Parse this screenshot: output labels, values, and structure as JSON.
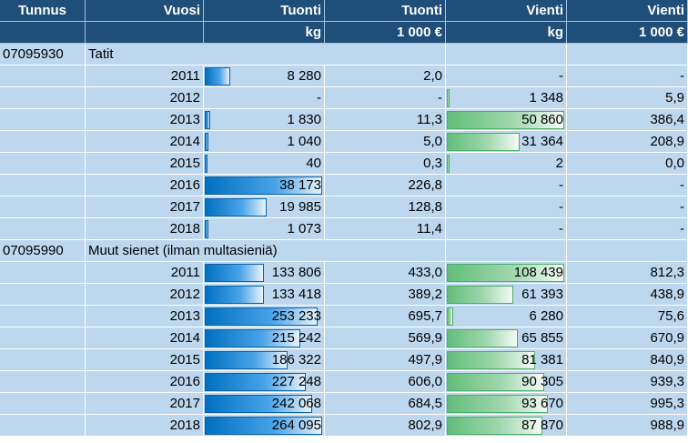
{
  "header": {
    "row1": [
      "Tunnus",
      "Vuosi",
      "Tuonti",
      "Tuonti",
      "Vienti",
      "Vienti"
    ],
    "row2": [
      "",
      "",
      "kg",
      "1 000 €",
      "kg",
      "1 000 €"
    ]
  },
  "colors": {
    "header_bg": "#1f4e79",
    "body_bg": "#bdd7ee",
    "import_bar": "#0070c0",
    "export_bar": "#63be7b"
  },
  "groups": [
    {
      "code": "07095930",
      "name": "Tatit",
      "rows": [
        {
          "year": "2011",
          "import_kg": "8 280",
          "import_k": "2,0",
          "export_kg": "-",
          "export_k": "-",
          "import_bar": 8280,
          "export_bar": 0
        },
        {
          "year": "2012",
          "import_kg": "-",
          "import_k": "-",
          "export_kg": "1 348",
          "export_k": "5,9",
          "import_bar": 0,
          "export_bar": 1348
        },
        {
          "year": "2013",
          "import_kg": "1 830",
          "import_k": "11,3",
          "export_kg": "50 860",
          "export_k": "386,4",
          "import_bar": 1830,
          "export_bar": 50860
        },
        {
          "year": "2014",
          "import_kg": "1 040",
          "import_k": "5,0",
          "export_kg": "31 364",
          "export_k": "208,9",
          "import_bar": 1040,
          "export_bar": 31364
        },
        {
          "year": "2015",
          "import_kg": "40",
          "import_k": "0,3",
          "export_kg": "2",
          "export_k": "0,0",
          "import_bar": 40,
          "export_bar": 2
        },
        {
          "year": "2016",
          "import_kg": "38 173",
          "import_k": "226,8",
          "export_kg": "-",
          "export_k": "-",
          "import_bar": 38173,
          "export_bar": 0
        },
        {
          "year": "2017",
          "import_kg": "19 985",
          "import_k": "128,8",
          "export_kg": "-",
          "export_k": "-",
          "import_bar": 19985,
          "export_bar": 0
        },
        {
          "year": "2018",
          "import_kg": "1 073",
          "import_k": "11,4",
          "export_kg": "-",
          "export_k": "-",
          "import_bar": 1073,
          "export_bar": 0
        }
      ]
    },
    {
      "code": "07095990",
      "name": "Muut sienet (ilman multasieniä)",
      "rows": [
        {
          "year": "2011",
          "import_kg": "133 806",
          "import_k": "433,0",
          "export_kg": "108 439",
          "export_k": "812,3",
          "import_bar": 133806,
          "export_bar": 108439
        },
        {
          "year": "2012",
          "import_kg": "133 418",
          "import_k": "389,2",
          "export_kg": "61 393",
          "export_k": "438,9",
          "import_bar": 133418,
          "export_bar": 61393
        },
        {
          "year": "2013",
          "import_kg": "253 233",
          "import_k": "695,7",
          "export_kg": "6 280",
          "export_k": "75,6",
          "import_bar": 253233,
          "export_bar": 6280
        },
        {
          "year": "2014",
          "import_kg": "215 242",
          "import_k": "569,9",
          "export_kg": "65 855",
          "export_k": "670,9",
          "import_bar": 215242,
          "export_bar": 65855
        },
        {
          "year": "2015",
          "import_kg": "186 322",
          "import_k": "497,9",
          "export_kg": "81 381",
          "export_k": "840,9",
          "import_bar": 186322,
          "export_bar": 81381
        },
        {
          "year": "2016",
          "import_kg": "227 248",
          "import_k": "606,0",
          "export_kg": "90 305",
          "export_k": "939,3",
          "import_bar": 227248,
          "export_bar": 90305
        },
        {
          "year": "2017",
          "import_kg": "242 068",
          "import_k": "684,5",
          "export_kg": "93 670",
          "export_k": "995,3",
          "import_bar": 242068,
          "export_bar": 93670
        },
        {
          "year": "2018",
          "import_kg": "264 095",
          "import_k": "802,9",
          "export_kg": "87 870",
          "export_k": "988,9",
          "import_bar": 264095,
          "export_bar": 87870
        }
      ]
    }
  ]
}
